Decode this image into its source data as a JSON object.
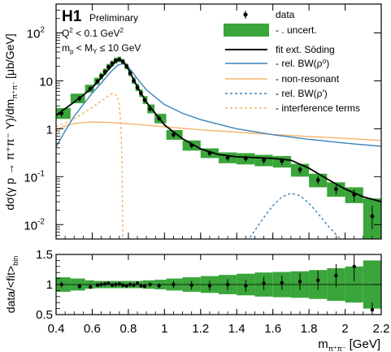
{
  "chart_data": [
    {
      "type": "line",
      "panel": "main",
      "xlim": [
        0.4,
        2.2
      ],
      "ylim": [
        0.005,
        400
      ],
      "yscale": "log",
      "ylabel": "dσ(γ p → π⁺π⁻ Y)/dm",
      "ylabel_sub": "π⁺π⁻",
      "ylabel_unit": "[μb/GeV]",
      "x_ticks": [
        0.4,
        0.6,
        0.8,
        1,
        1.2,
        1.4,
        1.6,
        1.8,
        2,
        2.2
      ],
      "y_ticks": [
        {
          "value": 0.01,
          "base": "10",
          "exp": "-2"
        },
        {
          "value": 0.1,
          "base": "10",
          "exp": "-1"
        },
        {
          "value": 1,
          "base": "1",
          "exp": ""
        },
        {
          "value": 10,
          "base": "10",
          "exp": ""
        },
        {
          "value": 100,
          "base": "10",
          "exp": "2"
        }
      ],
      "annotations": {
        "experiment": "H1",
        "status": "Preliminary",
        "q2_main": "Q",
        "q2_sup": "2",
        "q2_rest": " < 0.1 GeV",
        "q2_unit_sup": "2",
        "mass_main": "m",
        "mass_sub_p": "p",
        "mass_mid": " < M",
        "mass_sub_y": "Y",
        "mass_rest": " ≤ 10 GeV"
      },
      "legend": {
        "placement": "top-right",
        "items": [
          {
            "label": "data",
            "style": "marker",
            "color": "#000000"
          },
          {
            "label": "- . uncert.",
            "style": "box",
            "color": "#3aa53a"
          },
          {
            "label": "fit ext. Söding",
            "style": "solid",
            "color": "#000000"
          },
          {
            "label": "- rel. BW(ρ⁰)",
            "style": "solid",
            "color": "#3c84b8"
          },
          {
            "label": "- non-resonant",
            "style": "solid",
            "color": "#f6b26b"
          },
          {
            "label": "- rel. BW(ρ')",
            "style": "dashed",
            "color": "#3c84b8"
          },
          {
            "label": "- interference terms",
            "style": "dashed",
            "color": "#f6b26b"
          }
        ]
      },
      "data": {
        "x": [
          0.43,
          0.53,
          0.59,
          0.63,
          0.65,
          0.67,
          0.69,
          0.71,
          0.73,
          0.75,
          0.77,
          0.79,
          0.81,
          0.83,
          0.85,
          0.87,
          0.89,
          0.92,
          0.97,
          1.05,
          1.15,
          1.25,
          1.35,
          1.45,
          1.55,
          1.65,
          1.75,
          1.85,
          1.95,
          2.05,
          2.15
        ],
        "y": [
          2.1,
          4.3,
          6.9,
          9.8,
          12.5,
          15.5,
          19.5,
          23.0,
          26.5,
          28.0,
          25.0,
          20.0,
          14.5,
          10.0,
          7.2,
          5.5,
          4.0,
          2.6,
          1.65,
          0.75,
          0.45,
          0.31,
          0.25,
          0.24,
          0.22,
          0.21,
          0.14,
          0.085,
          0.055,
          0.042,
          0.015
        ],
        "ylow": [
          1.75,
          3.7,
          6.2,
          9.0,
          11.6,
          14.5,
          18.3,
          21.7,
          25.0,
          26.6,
          23.7,
          18.9,
          13.6,
          9.3,
          6.6,
          5.0,
          3.6,
          2.3,
          1.45,
          0.66,
          0.39,
          0.27,
          0.21,
          0.205,
          0.185,
          0.175,
          0.115,
          0.068,
          0.042,
          0.03,
          0.008
        ],
        "yhigh": [
          2.45,
          4.9,
          7.6,
          10.6,
          13.4,
          16.5,
          20.7,
          24.3,
          28.0,
          29.4,
          26.3,
          21.1,
          15.4,
          10.7,
          7.8,
          6.0,
          4.4,
          2.9,
          1.85,
          0.84,
          0.51,
          0.35,
          0.29,
          0.275,
          0.255,
          0.245,
          0.165,
          0.102,
          0.068,
          0.054,
          0.025
        ],
        "band_low": [
          1.6,
          3.4,
          5.7,
          8.3,
          10.7,
          13.4,
          16.9,
          20.0,
          23.0,
          24.5,
          21.8,
          17.4,
          12.5,
          8.6,
          6.1,
          4.6,
          3.3,
          2.1,
          1.3,
          0.59,
          0.35,
          0.245,
          0.19,
          0.18,
          0.165,
          0.155,
          0.1,
          0.06,
          0.038,
          0.028,
          0.005
        ],
        "band_high": [
          2.7,
          5.4,
          8.3,
          11.6,
          14.6,
          18.0,
          22.5,
          26.4,
          30.3,
          32.0,
          28.5,
          22.9,
          16.8,
          11.7,
          8.6,
          6.6,
          4.8,
          3.2,
          2.05,
          0.94,
          0.57,
          0.39,
          0.32,
          0.31,
          0.285,
          0.27,
          0.185,
          0.115,
          0.076,
          0.06,
          0.035
        ]
      },
      "curves": {
        "fit": {
          "x": [
            0.4,
            0.5,
            0.55,
            0.6,
            0.65,
            0.7,
            0.73,
            0.75,
            0.77,
            0.79,
            0.82,
            0.85,
            0.9,
            1.0,
            1.1,
            1.2,
            1.3,
            1.4,
            1.5,
            1.6,
            1.7,
            1.8,
            1.9,
            2.0,
            2.1,
            2.2
          ],
          "y": [
            1.9,
            3.6,
            5.0,
            7.2,
            11.5,
            19.0,
            25.0,
            28.0,
            26.0,
            20.5,
            12.5,
            7.5,
            3.6,
            1.2,
            0.62,
            0.38,
            0.29,
            0.26,
            0.25,
            0.24,
            0.22,
            0.15,
            0.09,
            0.055,
            0.038,
            0.03
          ]
        },
        "rel_bw_rho0": {
          "x": [
            0.4,
            0.45,
            0.5,
            0.55,
            0.6,
            0.65,
            0.7,
            0.74,
            0.77,
            0.8,
            0.85,
            0.9,
            1.0,
            1.1,
            1.2,
            1.4,
            1.6,
            1.8,
            2.0,
            2.2
          ],
          "y": [
            0.42,
            0.9,
            1.8,
            3.2,
            5.5,
            9.0,
            15.0,
            21.0,
            23.0,
            19.5,
            11.0,
            6.5,
            3.2,
            2.1,
            1.55,
            1.0,
            0.75,
            0.6,
            0.5,
            0.43
          ]
        },
        "non_resonant": {
          "x": [
            0.4,
            0.45,
            0.5,
            0.55,
            0.6,
            0.7,
            0.8,
            0.9,
            1.0,
            1.2,
            1.4,
            1.6,
            1.8,
            2.0,
            2.2
          ],
          "y": [
            0.95,
            1.15,
            1.28,
            1.35,
            1.38,
            1.35,
            1.27,
            1.18,
            1.1,
            0.95,
            0.85,
            0.76,
            0.69,
            0.63,
            0.57
          ]
        },
        "rel_bw_rho_prime": {
          "x": [
            1.4,
            1.45,
            1.5,
            1.55,
            1.6,
            1.65,
            1.7,
            1.75,
            1.8,
            1.85,
            1.9,
            1.95,
            2.0,
            2.05,
            2.1,
            2.15,
            2.2
          ],
          "y": [
            0.002,
            0.004,
            0.0075,
            0.014,
            0.025,
            0.038,
            0.045,
            0.04,
            0.028,
            0.017,
            0.01,
            0.0062,
            0.004,
            0.0027,
            0.0019,
            0.0013,
            0.001
          ]
        },
        "interference": {
          "x": [
            0.4,
            0.5,
            0.55,
            0.6,
            0.65,
            0.7,
            0.72,
            0.74,
            0.75,
            0.76,
            0.765,
            0.77
          ],
          "y": [
            1.1,
            1.6,
            2.1,
            2.8,
            3.8,
            5.2,
            5.5,
            4.6,
            3.2,
            0.9,
            0.2,
            0.004
          ]
        }
      }
    },
    {
      "type": "scatter",
      "panel": "ratio",
      "xlim": [
        0.4,
        2.2
      ],
      "ylim": [
        0.5,
        1.5
      ],
      "xlabel": "m",
      "xlabel_sub": "π⁺π⁻",
      "xlabel_unit": "[GeV]",
      "ylabel": "data/<fit>",
      "ylabel_sub": "bin",
      "x_tick_labels": [
        "0.4",
        "0.6",
        "0.8",
        "1",
        "1.2",
        "1.4",
        "1.6",
        "1.8",
        "2",
        "2.2"
      ],
      "y_tick_labels": [
        "0.5",
        "1",
        "1.5"
      ],
      "reference_line": 1,
      "data": {
        "x": [
          0.43,
          0.53,
          0.59,
          0.63,
          0.65,
          0.67,
          0.69,
          0.71,
          0.73,
          0.75,
          0.77,
          0.79,
          0.81,
          0.83,
          0.85,
          0.87,
          0.89,
          0.92,
          0.97,
          1.05,
          1.15,
          1.25,
          1.35,
          1.45,
          1.55,
          1.65,
          1.75,
          1.85,
          1.95,
          2.05,
          2.15
        ],
        "y": [
          1.0,
          0.97,
          0.96,
          0.99,
          1.0,
          1.01,
          1.02,
          0.99,
          1.0,
          1.01,
          0.99,
          0.98,
          1.0,
          0.99,
          1.02,
          0.98,
          0.97,
          1.0,
          0.98,
          1.0,
          0.99,
          0.98,
          1.0,
          0.98,
          1.02,
          1.03,
          1.05,
          1.07,
          1.15,
          1.3,
          0.58
        ],
        "err": [
          0.05,
          0.04,
          0.03,
          0.03,
          0.03,
          0.03,
          0.03,
          0.03,
          0.03,
          0.03,
          0.03,
          0.03,
          0.03,
          0.03,
          0.03,
          0.03,
          0.03,
          0.03,
          0.04,
          0.06,
          0.07,
          0.08,
          0.09,
          0.1,
          0.11,
          0.12,
          0.14,
          0.16,
          0.19,
          0.24,
          0.12
        ],
        "band": [
          0.12,
          0.1,
          0.07,
          0.06,
          0.06,
          0.06,
          0.06,
          0.06,
          0.06,
          0.06,
          0.06,
          0.06,
          0.06,
          0.06,
          0.06,
          0.06,
          0.07,
          0.07,
          0.08,
          0.1,
          0.12,
          0.14,
          0.16,
          0.18,
          0.2,
          0.21,
          0.22,
          0.24,
          0.27,
          0.3,
          0.4
        ]
      }
    }
  ]
}
